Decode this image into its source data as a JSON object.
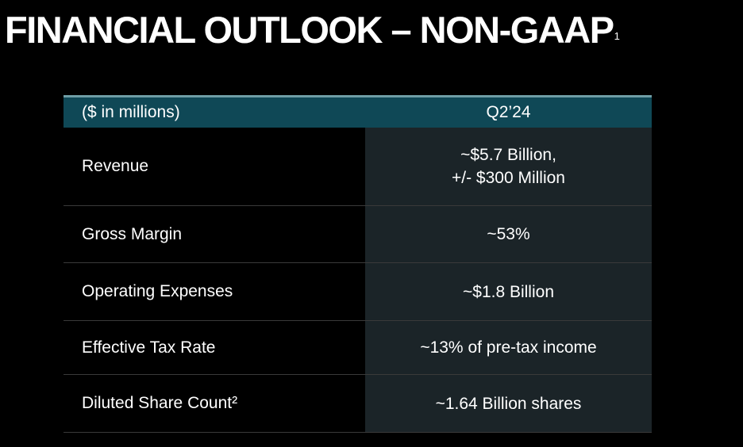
{
  "title": {
    "text": "FINANCIAL OUTLOOK – NON-GAAP",
    "footnote": "1"
  },
  "table": {
    "header": {
      "label": "($ in millions)",
      "period": "Q2’24"
    },
    "rows": [
      {
        "label": "Revenue",
        "value_line1": "~$5.7 Billion,",
        "value_line2": "+/- $300 Million"
      },
      {
        "label": "Gross Margin",
        "value": "~53%"
      },
      {
        "label": "Operating Expenses",
        "value": "~$1.8 Billion"
      },
      {
        "label": "Effective Tax Rate",
        "value": "~13% of pre-tax income"
      },
      {
        "label": "Diluted Share Count²",
        "value": "~1.64 Billion shares"
      }
    ]
  },
  "colors": {
    "header_bg": "#0f4856",
    "header_border": "#6f9ea6",
    "value_col_bg": "#1b2428",
    "background": "#000000"
  }
}
